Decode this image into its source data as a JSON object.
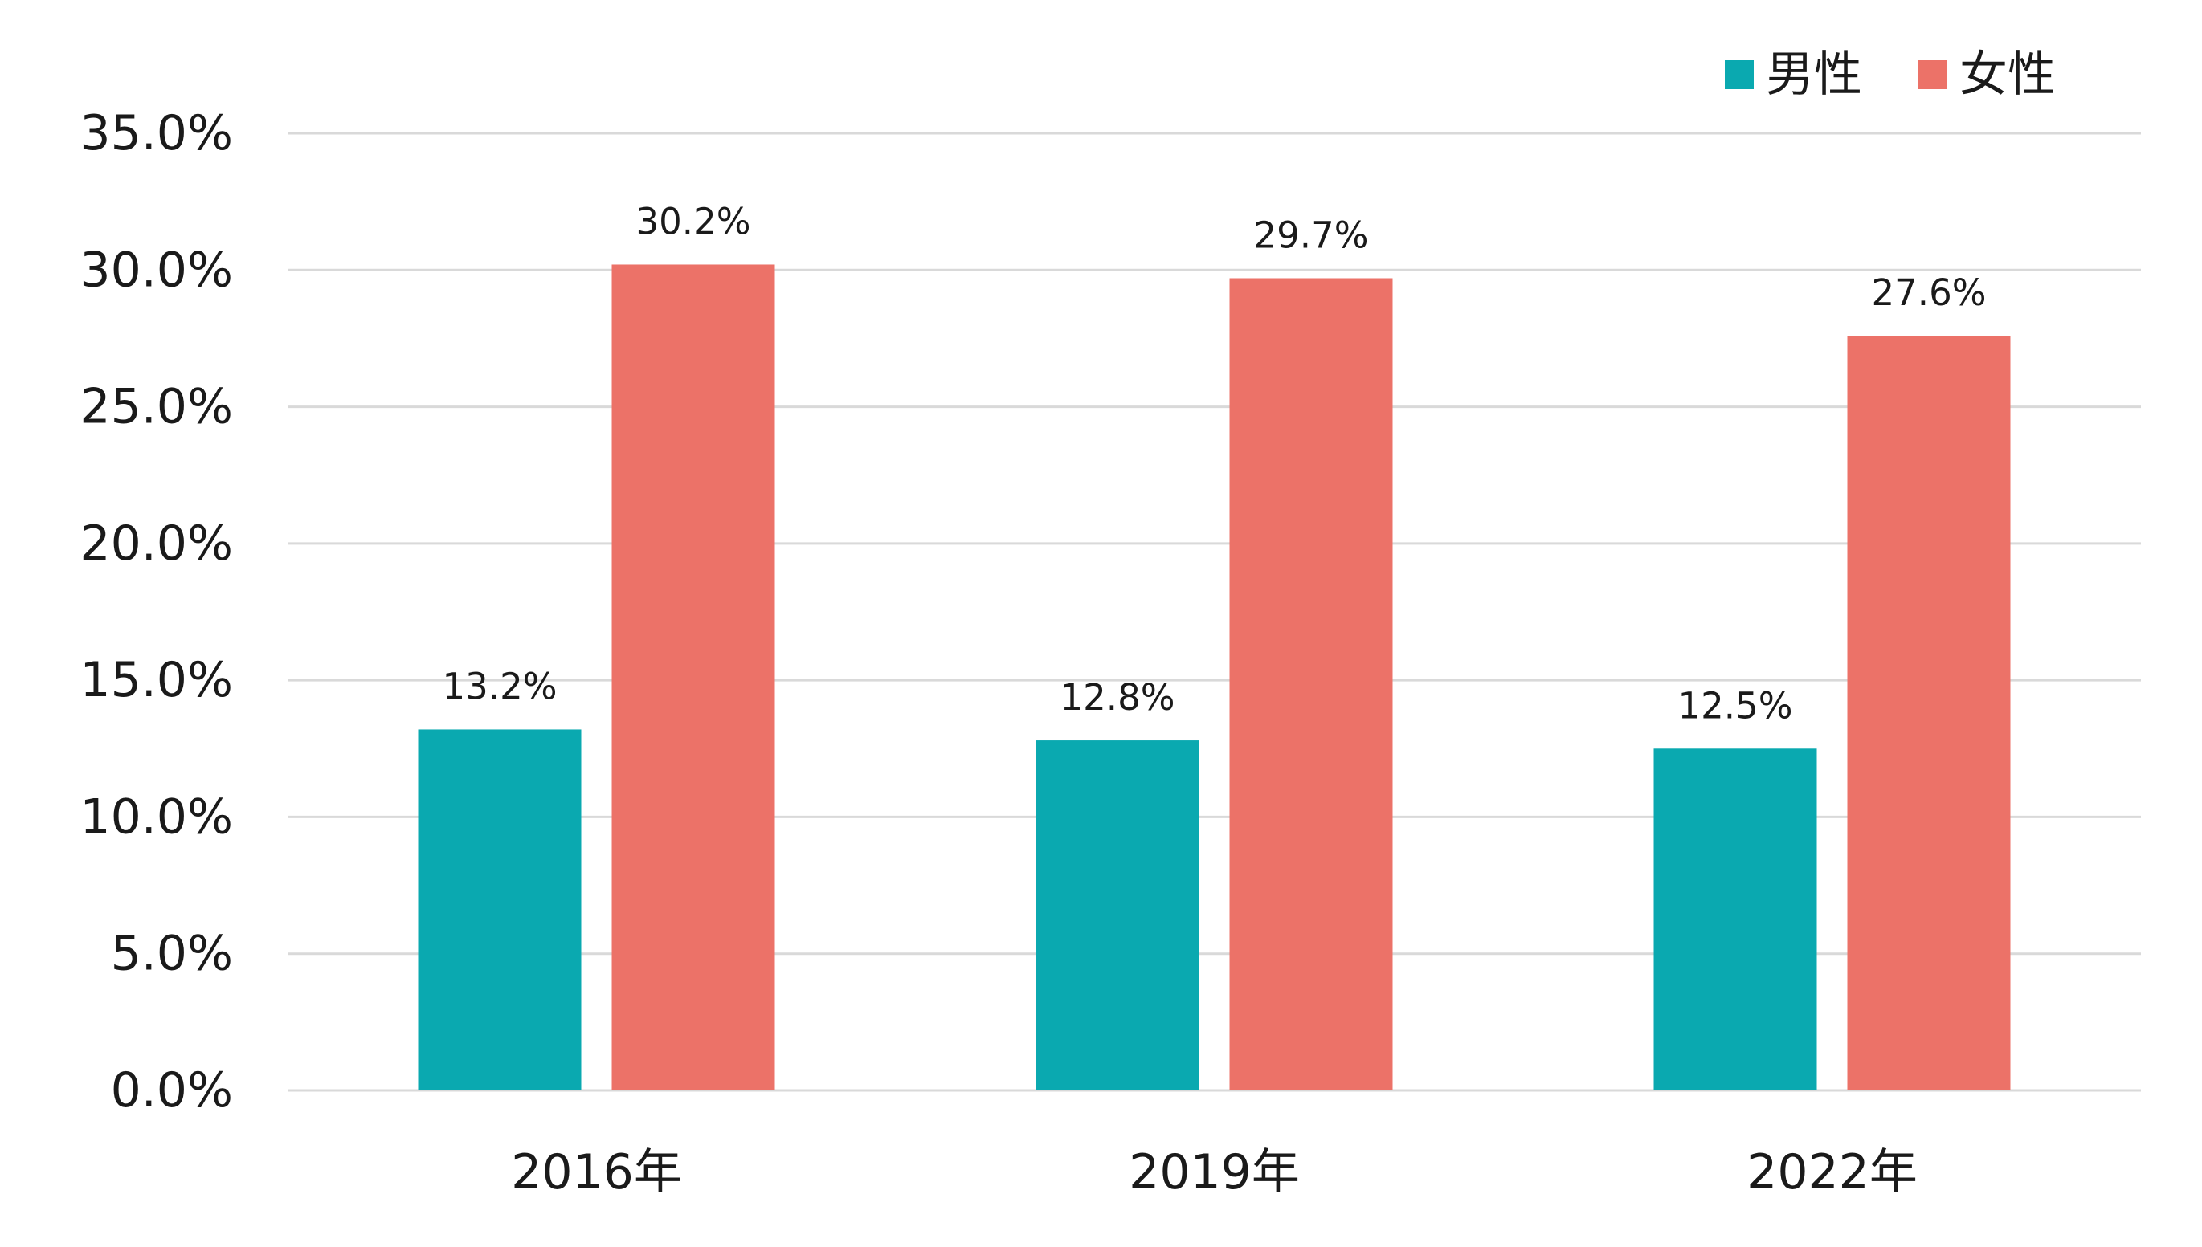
{
  "chart_data": {
    "type": "bar",
    "categories": [
      "2016年",
      "2019年",
      "2022年"
    ],
    "series": [
      {
        "name": "男性",
        "values": [
          13.2,
          12.8,
          12.5
        ],
        "labels": [
          "13.2%",
          "12.8%",
          "12.5%"
        ],
        "color": "#0AA9B0"
      },
      {
        "name": "女性",
        "values": [
          30.2,
          29.7,
          27.6
        ],
        "labels": [
          "30.2%",
          "29.7%",
          "27.6%"
        ],
        "color": "#EC7268"
      }
    ],
    "y_ticks": [
      "0.0%",
      "5.0%",
      "10.0%",
      "15.0%",
      "20.0%",
      "25.0%",
      "30.0%",
      "35.0%"
    ],
    "ylim": [
      0,
      35
    ],
    "y_step": 5,
    "grid": true,
    "gridline_color": "#D9D9D9",
    "legend_position": "top-right",
    "title": "",
    "xlabel": "",
    "ylabel": ""
  }
}
